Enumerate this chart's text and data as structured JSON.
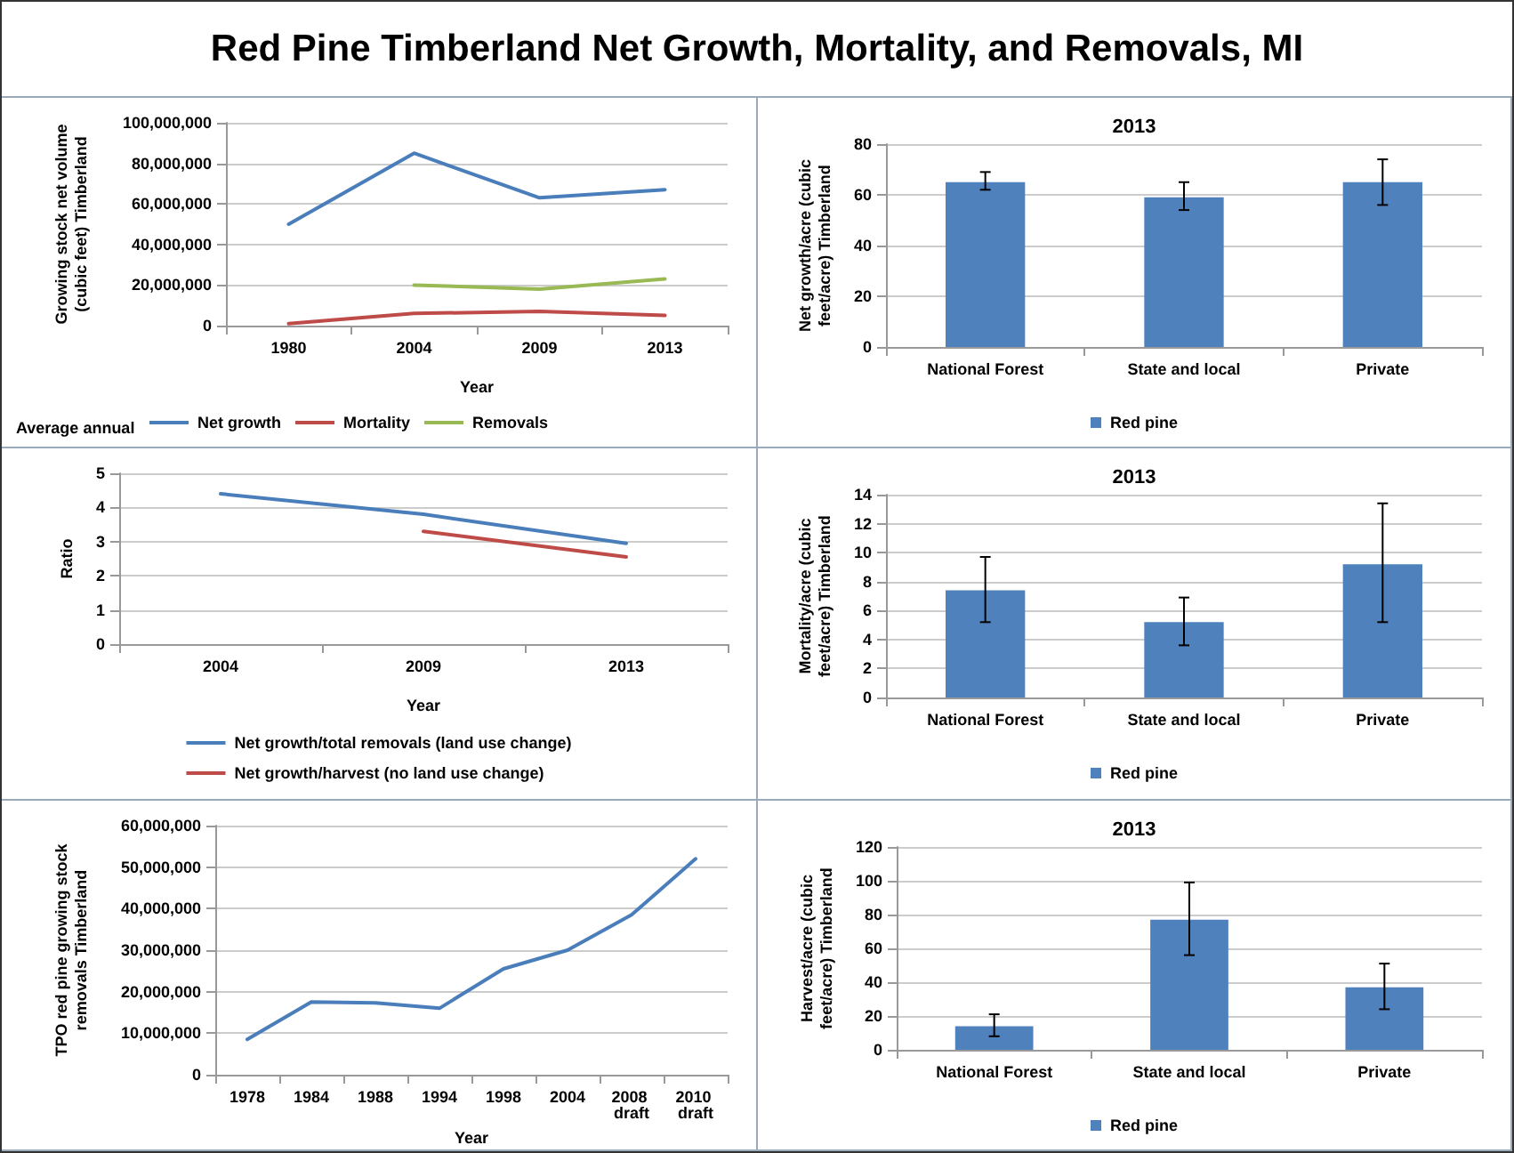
{
  "chart_data": [
    {
      "type": "other",
      "title": "Red Pine Timberland Net Growth, Mortality, and Removals, MI"
    },
    {
      "type": "line",
      "categories": [
        "1980",
        "2004",
        "2009",
        "2013"
      ],
      "xlabel": "Year",
      "ylabel": "Growing stock net volume (cubic feet) Timberland",
      "legend_title": "Average annual",
      "series": [
        {
          "name": "Net growth",
          "color": "#4a7ebb",
          "values": [
            50000000,
            85000000,
            63000000,
            67000000
          ]
        },
        {
          "name": "Mortality",
          "color": "#be4b48",
          "values": [
            1000000,
            6000000,
            7000000,
            5000000
          ]
        },
        {
          "name": "Removals",
          "color": "#98b954",
          "values": [
            null,
            20000000,
            18000000,
            23000000
          ]
        }
      ],
      "ylim": [
        0,
        100000000
      ],
      "yticks": [
        0,
        {
          "value": 20000000,
          "label": "20,000,000"
        },
        {
          "value": 40000000,
          "label": "40,000,000"
        },
        {
          "value": 60000000,
          "label": "60,000,000"
        },
        {
          "value": 80000000,
          "label": "80,000,000"
        },
        {
          "value": 100000000,
          "label": "100,000,000"
        }
      ],
      "grid": "y",
      "legend": "bottom",
      "marker": "none",
      "line_style": "solid"
    },
    {
      "type": "bar",
      "title": "2013",
      "categories": [
        "National Forest",
        "State and local",
        "Private"
      ],
      "ylabel": "Net growth/acre (cubic feet/acre) Timberland",
      "series": [
        {
          "name": "Red pine",
          "color": "#4f81bd",
          "values": [
            65,
            59,
            65
          ],
          "errors": [
            [
              62,
              69
            ],
            [
              54,
              65
            ],
            [
              56,
              74
            ]
          ]
        }
      ],
      "ylim": [
        0,
        80
      ],
      "yticks": [
        0,
        20,
        40,
        60,
        80
      ],
      "grid": "y",
      "legend": "bottom"
    },
    {
      "type": "line",
      "categories": [
        "2004",
        "2009",
        "2013"
      ],
      "xlabel": "Year",
      "ylabel": "Ratio",
      "series": [
        {
          "name": "Net growth/total removals (land use change)",
          "color": "#4a7ebb",
          "values": [
            4.4,
            3.8,
            2.95
          ]
        },
        {
          "name": "Net growth/harvest (no land use change)",
          "color": "#be4b48",
          "values": [
            null,
            3.3,
            2.55
          ]
        }
      ],
      "ylim": [
        0,
        5
      ],
      "yticks": [
        0,
        1,
        2,
        3,
        4,
        5
      ],
      "grid": "y",
      "legend": "bottom",
      "marker": "none",
      "line_style": "solid"
    },
    {
      "type": "bar",
      "title": "2013",
      "categories": [
        "National Forest",
        "State and local",
        "Private"
      ],
      "ylabel": "Mortality/acre (cubic feet/acre) Timberland",
      "series": [
        {
          "name": "Red pine",
          "color": "#4f81bd",
          "values": [
            7.4,
            5.2,
            9.2
          ],
          "errors": [
            [
              5.2,
              9.7
            ],
            [
              3.6,
              6.9
            ],
            [
              5.2,
              13.4
            ]
          ]
        }
      ],
      "ylim": [
        0,
        14
      ],
      "yticks": [
        0,
        2,
        4,
        6,
        8,
        10,
        12,
        14
      ],
      "grid": "y",
      "legend": "bottom"
    },
    {
      "type": "line",
      "categories": [
        "1978",
        "1984",
        "1988",
        "1994",
        "1998",
        "2004",
        "2008 draft",
        "2010 draft"
      ],
      "xlabel": "Year",
      "ylabel": "TPO red pine growing stock removals Timberland",
      "series": [
        {
          "color": "#4a7ebb",
          "values": [
            8500000,
            17500000,
            17300000,
            16000000,
            25500000,
            30000000,
            38500000,
            52000000
          ]
        }
      ],
      "ylim": [
        0,
        60000000
      ],
      "yticks": [
        0,
        {
          "value": 10000000,
          "label": "10,000,000"
        },
        {
          "value": 20000000,
          "label": "20,000,000"
        },
        {
          "value": 30000000,
          "label": "30,000,000"
        },
        {
          "value": 40000000,
          "label": "40,000,000"
        },
        {
          "value": 50000000,
          "label": "50,000,000"
        },
        {
          "value": 60000000,
          "label": "60,000,000"
        }
      ],
      "grid": "y",
      "marker": "none",
      "line_style": "solid"
    },
    {
      "type": "bar",
      "title": "2013",
      "categories": [
        "National Forest",
        "State and local",
        "Private"
      ],
      "ylabel": "Harvest/acre (cubic feet/acre) Timberland",
      "series": [
        {
          "name": "Red pine",
          "color": "#4f81bd",
          "values": [
            14,
            77,
            37
          ],
          "errors": [
            [
              8,
              21
            ],
            [
              56,
              99
            ],
            [
              24,
              51
            ]
          ]
        }
      ],
      "ylim": [
        0,
        120
      ],
      "yticks": [
        0,
        20,
        40,
        60,
        80,
        100,
        120
      ],
      "grid": "y",
      "legend": "bottom"
    }
  ]
}
